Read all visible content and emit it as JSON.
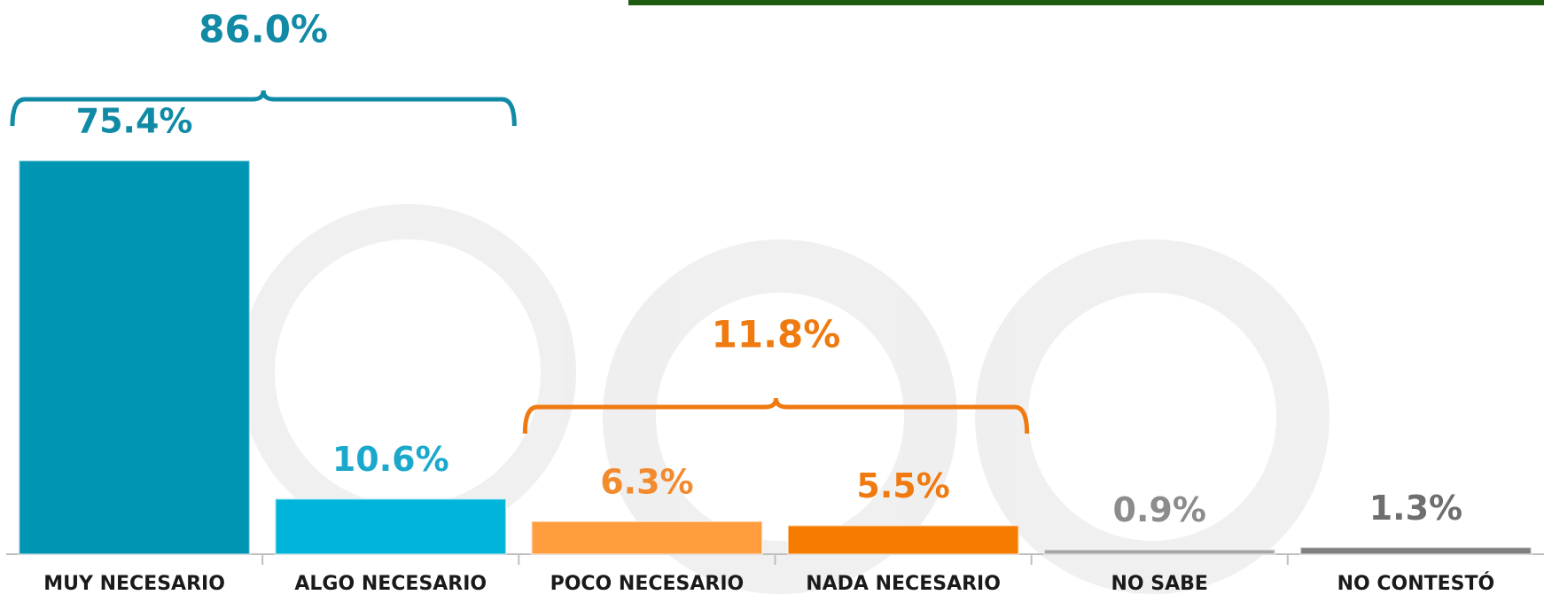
{
  "chart_data": {
    "type": "bar",
    "categories": [
      "MUY NECESARIO",
      "ALGO NECESARIO",
      "POCO NECESARIO",
      "NADA NECESARIO",
      "NO SABE",
      "NO CONTESTÓ"
    ],
    "values": [
      75.4,
      10.6,
      6.3,
      5.5,
      0.9,
      1.3
    ],
    "value_labels": [
      "75.4%",
      "10.6%",
      "6.3%",
      "5.5%",
      "0.9%",
      "1.3%"
    ],
    "colors": [
      "#0095b3",
      "#00b5d9",
      "#ff9d3f",
      "#f57c00",
      "#a6a6a6",
      "#7f7f7f"
    ],
    "label_colors": [
      "#118aa6",
      "#1aa9cc",
      "#f28a2e",
      "#ef7a10",
      "#8c8c8c",
      "#6e6e6e"
    ],
    "annotations": [
      {
        "text": "86.0%",
        "color": "#118aa6"
      },
      {
        "text": "11.8%",
        "color": "#ef7a10"
      }
    ],
    "ylim": [
      0,
      80
    ]
  }
}
